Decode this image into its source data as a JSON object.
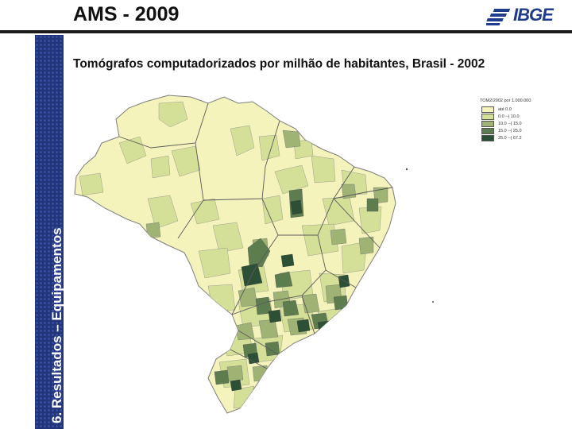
{
  "header": {
    "title": "AMS - 2009",
    "logo_text": "IBGE"
  },
  "sidebar": {
    "section_label": "6. Resultados – Equipamentos"
  },
  "map": {
    "title": "Tomógrafos computadorizados por milhão de habitantes, Brasil - 2002",
    "legend_title": "TOM2/2002 por 1.000.000",
    "legend": [
      {
        "label": "até 0.0",
        "color": "#f4f3bc"
      },
      {
        "label": "0.0 --| 10.0",
        "color": "#d4df98"
      },
      {
        "label": "10.0 --| 15.0",
        "color": "#9fb474"
      },
      {
        "label": "15.0 --| 25.0",
        "color": "#5d7d4e"
      },
      {
        "label": "25.0 --| 67.2",
        "color": "#2c5036"
      }
    ]
  }
}
